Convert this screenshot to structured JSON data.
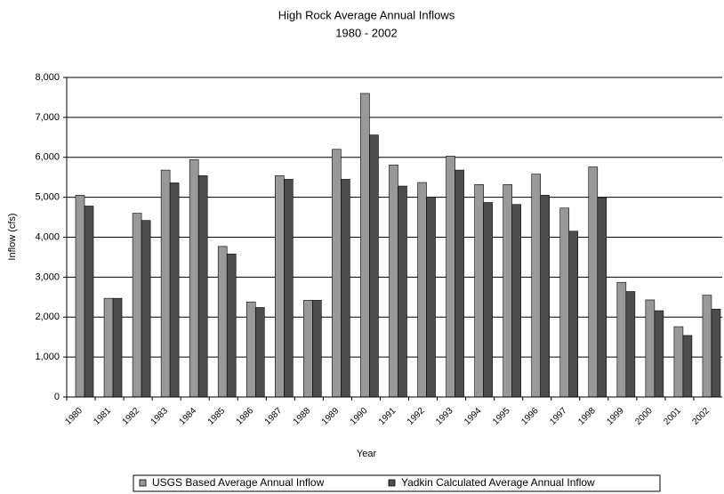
{
  "chart_data": {
    "type": "bar",
    "title": "High Rock Average Annual Inflows",
    "subtitle": "1980 - 2002",
    "x_label": "Year",
    "y_label": "Inflow (cfs)",
    "categories": [
      "1980",
      "1981",
      "1982",
      "1983",
      "1984",
      "1985",
      "1986",
      "1987",
      "1988",
      "1989",
      "1990",
      "1991",
      "1992",
      "1993",
      "1994",
      "1995",
      "1996",
      "1997",
      "1998",
      "1999",
      "2000",
      "2001",
      "2002"
    ],
    "series": [
      {
        "name": "USGS Based Average Annual Inflow",
        "color": "#999999",
        "values": [
          5050,
          2470,
          4600,
          5680,
          5940,
          3770,
          2380,
          5540,
          2420,
          6200,
          7600,
          5810,
          5370,
          6030,
          5320,
          5320,
          5580,
          4730,
          5760,
          2870,
          2430,
          1760,
          2550
        ]
      },
      {
        "name": "Yadkin Calculated Average Annual Inflow",
        "color": "#4d4d4d",
        "values": [
          4780,
          2470,
          4420,
          5360,
          5540,
          3580,
          2240,
          5450,
          2420,
          5450,
          6560,
          5280,
          5000,
          5680,
          4870,
          4820,
          5050,
          4150,
          4990,
          2640,
          2160,
          1540,
          2200
        ]
      }
    ],
    "ylim": [
      0,
      8000
    ],
    "yticks": [
      0,
      {
        "value": 1000,
        "label": "1,000"
      },
      {
        "value": 2000,
        "label": "2,000"
      },
      {
        "value": 3000,
        "label": "3,000"
      },
      {
        "value": 4000,
        "label": "4,000"
      },
      {
        "value": 5000,
        "label": "5,000"
      },
      {
        "value": 6000,
        "label": "6,000"
      },
      {
        "value": 7000,
        "label": "7,000"
      },
      {
        "value": 8000,
        "label": "8,000"
      }
    ],
    "grid": true,
    "legend": "bottom"
  }
}
